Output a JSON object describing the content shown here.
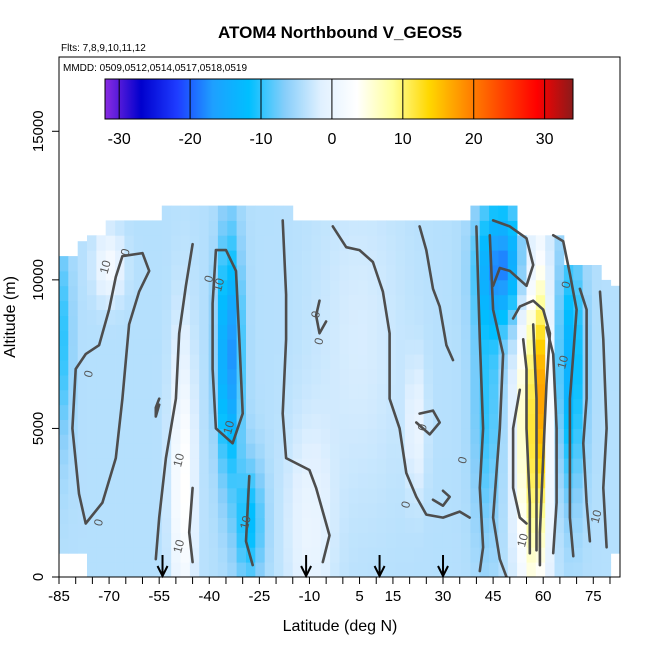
{
  "chart_data": {
    "type": "heatmap",
    "title": "ATOM4 Northbound V_GEOS5",
    "subtitle_flights": "Flts: 7,8,9,10,11,12",
    "subtitle_dates": "MMDD: 0509,0512,0514,0517,0518,0519",
    "xlabel": "Latitude (deg N)",
    "ylabel": "Altitude (m)",
    "xlim": [
      -85,
      83
    ],
    "ylim": [
      0,
      17500
    ],
    "x_ticks_labeled": [
      "-85",
      "-70",
      "-55",
      "-40",
      "-25",
      "-10",
      "5",
      "15",
      "30",
      "45",
      "60",
      "75"
    ],
    "x_tick_values": [
      -85,
      -70,
      -55,
      -40,
      -25,
      -10,
      5,
      15,
      30,
      45,
      60,
      75
    ],
    "y_ticks": [
      {
        "value": 0,
        "label": "0"
      },
      {
        "value": 5000,
        "label": "5000"
      },
      {
        "value": 10000,
        "label": "10000"
      },
      {
        "value": 15000,
        "label": "15000"
      }
    ],
    "colorbar": {
      "range": [
        -32,
        34
      ],
      "tick_values": [
        -30,
        -20,
        -10,
        0,
        10,
        20,
        30
      ],
      "tick_labels": [
        "-30",
        "-20",
        "-10",
        "0",
        "10",
        "20",
        "30"
      ],
      "colors": [
        "#8a2be2",
        "#0000cd",
        "#1e3cff",
        "#1ea0ff",
        "#00bfff",
        "#87cefa",
        "#e0f0ff",
        "#ffffff",
        "#ffff99",
        "#ffd700",
        "#ff8c00",
        "#ff4500",
        "#ff0000",
        "#8b1a1a"
      ]
    },
    "contour_labels": [
      {
        "lat": -70,
        "alt": 10400,
        "text": "10"
      },
      {
        "lat": -64,
        "alt": 10900,
        "text": "0"
      },
      {
        "lat": -75,
        "alt": 6800,
        "text": "0"
      },
      {
        "lat": -72,
        "alt": 1800,
        "text": "0"
      },
      {
        "lat": -39,
        "alt": 10000,
        "text": "0"
      },
      {
        "lat": -36,
        "alt": 9800,
        "text": "10"
      },
      {
        "lat": -33,
        "alt": 5000,
        "text": "10"
      },
      {
        "lat": -48,
        "alt": 3900,
        "text": "10"
      },
      {
        "lat": -48,
        "alt": 1000,
        "text": "10"
      },
      {
        "lat": -28,
        "alt": 1800,
        "text": "10"
      },
      {
        "lat": -7,
        "alt": 8800,
        "text": "0"
      },
      {
        "lat": -6,
        "alt": 7900,
        "text": "0"
      },
      {
        "lat": 25,
        "alt": 5000,
        "text": "0"
      },
      {
        "lat": 20,
        "alt": 2400,
        "text": "0"
      },
      {
        "lat": 37,
        "alt": 3900,
        "text": "0"
      },
      {
        "lat": 55,
        "alt": 1200,
        "text": "10"
      },
      {
        "lat": 68,
        "alt": 9800,
        "text": "0"
      },
      {
        "lat": 67,
        "alt": 7200,
        "text": "10"
      },
      {
        "lat": 77,
        "alt": 2000,
        "text": "10"
      }
    ],
    "arrow_latitudes": [
      -54,
      -11,
      11,
      30
    ]
  }
}
